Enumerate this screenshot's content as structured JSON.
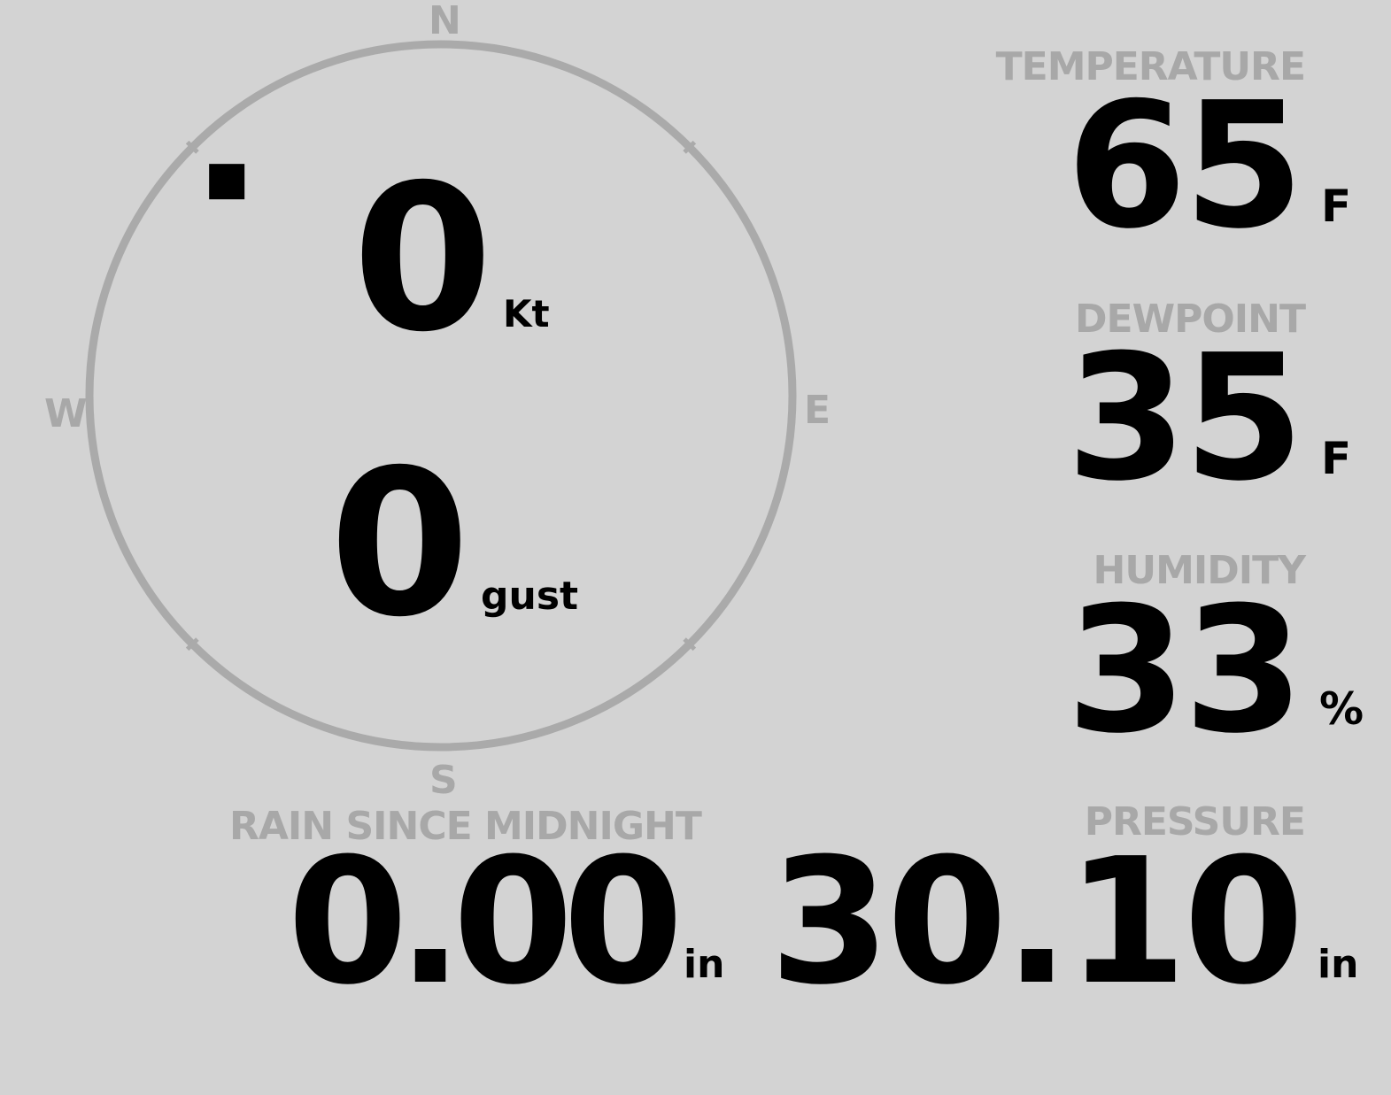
{
  "colors": {
    "background": "#d3d3d3",
    "label": "#a8a8a8",
    "value": "#000000",
    "compass_ring": "#aaaaaa"
  },
  "wind": {
    "direction_degrees": 315,
    "speed": "0",
    "speed_unit": "Kt",
    "gust": "0",
    "gust_unit": "gust",
    "cardinals": {
      "n": "N",
      "e": "E",
      "s": "S",
      "w": "W"
    }
  },
  "temperature": {
    "label": "TEMPERATURE",
    "value": "65",
    "unit": "F"
  },
  "dewpoint": {
    "label": "DEWPOINT",
    "value": "35",
    "unit": "F"
  },
  "humidity": {
    "label": "HUMIDITY",
    "value": "33",
    "unit": "%"
  },
  "rain": {
    "label": "RAIN SINCE MIDNIGHT",
    "value": "0.00",
    "unit": "in"
  },
  "pressure": {
    "label": "PRESSURE",
    "value": "30.10",
    "unit": "in"
  }
}
